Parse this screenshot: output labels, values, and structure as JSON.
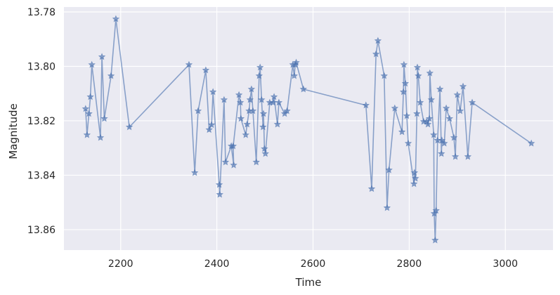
{
  "chart_data": {
    "type": "line",
    "x_label": "Time",
    "y_label": "Magnitude",
    "x": [
      2127,
      2130,
      2134,
      2137,
      2140,
      2158,
      2161,
      2166,
      2180,
      2190,
      2218,
      2342,
      2354,
      2361,
      2377,
      2384,
      2389,
      2392,
      2405,
      2406,
      2415,
      2418,
      2430,
      2435,
      2434,
      2446,
      2449,
      2450,
      2460,
      2463,
      2467,
      2469,
      2472,
      2475,
      2482,
      2488,
      2490,
      2493,
      2496,
      2497,
      2499,
      2501,
      2510,
      2517,
      2519,
      2526,
      2529,
      2541,
      2546,
      2558,
      2561,
      2563,
      2565,
      2580,
      2710,
      2722,
      2731,
      2735,
      2748,
      2754,
      2758,
      2770,
      2785,
      2788,
      2789,
      2792,
      2795,
      2798,
      2810,
      2811,
      2813,
      2816,
      2817,
      2819,
      2823,
      2830,
      2836,
      2839,
      2842,
      2843,
      2846,
      2851,
      2852,
      2854,
      2856,
      2859,
      2864,
      2867,
      2868,
      2873,
      2877,
      2884,
      2893,
      2896,
      2900,
      2906,
      2912,
      2922,
      2931,
      3054
    ],
    "series": [
      {
        "color": "#4c72b0",
        "marker": "star",
        "values": [
          13.8156,
          13.8252,
          13.8174,
          13.8112,
          13.7994,
          13.8262,
          13.7965,
          13.8192,
          13.8035,
          13.7826,
          13.8223,
          13.7994,
          13.8391,
          13.8164,
          13.8014,
          13.8233,
          13.8215,
          13.8094,
          13.8435,
          13.8471,
          13.8123,
          13.8352,
          13.8293,
          13.8363,
          13.8293,
          13.8105,
          13.8133,
          13.8192,
          13.8252,
          13.8213,
          13.8164,
          13.8123,
          13.8084,
          13.8164,
          13.8352,
          13.8035,
          13.8004,
          13.8123,
          13.8223,
          13.8174,
          13.8303,
          13.8321,
          13.8133,
          13.8133,
          13.8112,
          13.8213,
          13.8133,
          13.8174,
          13.8164,
          13.7994,
          13.8035,
          13.7994,
          13.7986,
          13.8084,
          13.8143,
          13.845,
          13.7955,
          13.7906,
          13.8035,
          13.852,
          13.8381,
          13.8154,
          13.8241,
          13.8094,
          13.7994,
          13.8063,
          13.8182,
          13.8283,
          13.8432,
          13.8391,
          13.8412,
          13.8174,
          13.8004,
          13.8035,
          13.8133,
          13.8203,
          13.8203,
          13.8213,
          13.8192,
          13.8025,
          13.8123,
          13.8252,
          13.8541,
          13.8639,
          13.853,
          13.8272,
          13.8084,
          13.8321,
          13.8272,
          13.8283,
          13.8154,
          13.8192,
          13.8262,
          13.8332,
          13.8105,
          13.8164,
          13.8074,
          13.8332,
          13.8133,
          13.8283
        ]
      }
    ],
    "xlim": [
      2082,
      3099
    ],
    "xticks": [
      2200,
      2400,
      2600,
      2800,
      3000
    ],
    "ylim": [
      13.8675,
      13.7782
    ],
    "yticks": [
      13.78,
      {
        "value": 13.8,
        "label": "13.80"
      },
      13.82,
      13.84,
      13.86
    ],
    "grid": true
  }
}
